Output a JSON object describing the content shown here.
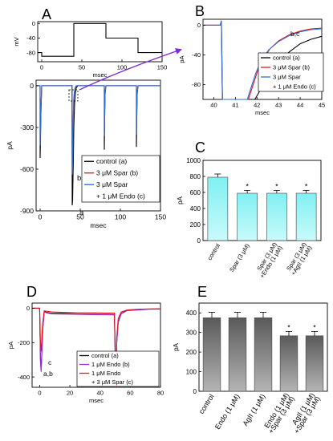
{
  "panels": {
    "a": "A",
    "b": "B",
    "c": "C",
    "d": "D",
    "e": "E"
  },
  "chart_data": [
    {
      "id": "A-inset",
      "type": "line",
      "ylabel": "mV",
      "xlabel": "msec",
      "xlim": [
        -5,
        150
      ],
      "ylim": [
        -105,
        5
      ],
      "xticks": [
        0,
        50,
        100,
        150
      ],
      "yticks": [
        0,
        -40,
        -80
      ],
      "series": [
        {
          "color": "#000000",
          "x": [
            -5,
            0,
            0,
            40,
            40,
            80,
            80,
            120,
            120,
            150
          ],
          "y": [
            -80,
            -80,
            -90,
            -90,
            0,
            0,
            -40,
            -40,
            -80,
            -80
          ]
        }
      ]
    },
    {
      "id": "A",
      "type": "line",
      "ylabel": "pA",
      "xlabel": "msec",
      "xlim": [
        -5,
        150
      ],
      "ylim": [
        -900,
        40
      ],
      "xticks": [
        0,
        50,
        100,
        150
      ],
      "yticks": [
        0,
        -300,
        -600,
        -900
      ],
      "annotations": [
        "b,c",
        "a"
      ],
      "legend": {
        "position": "bottom-right",
        "entries": [
          {
            "label": "control (a)",
            "color": "#000000"
          },
          {
            "label": "3 μM Spar (b)",
            "color": "#e8141b"
          },
          {
            "label": "3 μM Spar",
            "color": "#2a6fd6"
          },
          {
            "label": "+ 1 μM Endo (c)",
            "color": ""
          }
        ]
      },
      "series": [
        {
          "color": "#000000",
          "x": [
            -5,
            0,
            0,
            1,
            2,
            39.8,
            40,
            40.5,
            41,
            41.5,
            42,
            43,
            44,
            45,
            47,
            80,
            80,
            80.5,
            81,
            82,
            120,
            120,
            120.5,
            121,
            122,
            150
          ],
          "y": [
            0,
            0,
            -520,
            -200,
            0,
            0,
            -860,
            -820,
            -650,
            -500,
            -300,
            -120,
            -50,
            -15,
            0,
            0,
            -460,
            -200,
            -60,
            0,
            0,
            -440,
            -200,
            -60,
            0,
            0
          ]
        },
        {
          "color": "#e8141b",
          "x": [
            -5,
            0,
            0,
            1,
            2,
            39.8,
            40,
            40.5,
            41,
            41.5,
            42,
            43,
            44,
            45,
            47,
            80,
            80,
            80.5,
            81,
            82,
            120,
            120,
            120.5,
            121,
            122,
            150
          ],
          "y": [
            0,
            0,
            -430,
            -150,
            0,
            0,
            -640,
            -520,
            -330,
            -180,
            -90,
            -30,
            -10,
            0,
            0,
            0,
            -360,
            -150,
            -40,
            0,
            0,
            -350,
            -150,
            -40,
            0,
            0
          ]
        },
        {
          "color": "#2a6fd6",
          "x": [
            -5,
            0,
            0,
            1,
            2,
            39.8,
            40,
            40.5,
            41,
            41.5,
            42,
            43,
            44,
            45,
            47,
            80,
            80,
            80.5,
            81,
            82,
            120,
            120,
            120.5,
            121,
            122,
            150
          ],
          "y": [
            0,
            0,
            -430,
            -150,
            0,
            0,
            -640,
            -520,
            -320,
            -170,
            -85,
            -28,
            -9,
            0,
            0,
            0,
            -360,
            -150,
            -40,
            0,
            0,
            -350,
            -150,
            -40,
            0,
            0
          ]
        }
      ]
    },
    {
      "id": "B",
      "type": "line",
      "ylabel": "pA",
      "xlabel": "msec",
      "xlim": [
        39.5,
        45
      ],
      "ylim": [
        -100,
        8
      ],
      "xticks": [
        40,
        41,
        42,
        43,
        44,
        45
      ],
      "yticks": [
        0,
        -40,
        -80
      ],
      "annotations": [
        "b,c",
        "a"
      ],
      "legend": {
        "position": "bottom-right",
        "entries": [
          {
            "label": "control (a)",
            "color": "#000000"
          },
          {
            "label": "3 μM Spar (b)",
            "color": "#e8141b"
          },
          {
            "label": "3 μM Spar",
            "color": "#2a6fd6"
          },
          {
            "label": "+ 1 μM Endo (c)",
            "color": ""
          }
        ]
      },
      "series": [
        {
          "color": "#000000",
          "x": [
            39.5,
            40.3,
            40.35,
            40.4,
            40.45,
            41.9,
            42.2,
            42.5,
            42.8,
            43.0,
            43.5,
            44.0,
            44.5,
            45.0
          ],
          "y": [
            0,
            0,
            6,
            -100,
            -100,
            -100,
            -85,
            -70,
            -57,
            -50,
            -36,
            -25,
            -19,
            -15
          ]
        },
        {
          "color": "#e8141b",
          "x": [
            39.5,
            40.3,
            40.35,
            40.4,
            40.45,
            41.6,
            41.8,
            42.0,
            42.3,
            42.6,
            43.0,
            43.5,
            44.0,
            44.5,
            45.0
          ],
          "y": [
            0,
            0,
            6,
            -100,
            -100,
            -100,
            -82,
            -64,
            -45,
            -32,
            -21,
            -13,
            -8,
            -5,
            -4
          ]
        },
        {
          "color": "#2a6fd6",
          "x": [
            39.5,
            40.3,
            40.35,
            40.4,
            40.45,
            41.55,
            41.75,
            41.95,
            42.25,
            42.55,
            43.0,
            43.5,
            44.0,
            44.5,
            45.0
          ],
          "y": [
            0,
            0,
            6,
            -100,
            -100,
            -100,
            -82,
            -64,
            -45,
            -33,
            -22,
            -14,
            -9,
            -6,
            -5
          ]
        }
      ]
    },
    {
      "id": "C",
      "type": "bar",
      "ylabel": "pA",
      "ylim": [
        0,
        1000
      ],
      "yticks": [
        0,
        200,
        400,
        600,
        800,
        1000
      ],
      "categories": [
        "control",
        "Spar (3 μM)",
        "Spar (3 μM) +Endo (1 μM)",
        "Spar (3 μM) +AgII (1 μM)"
      ],
      "values": [
        790,
        590,
        590,
        590
      ],
      "errors": [
        40,
        35,
        35,
        35
      ],
      "significance": [
        "",
        "*",
        "*",
        "*"
      ],
      "bar_color": "#7fe8ec"
    },
    {
      "id": "D",
      "type": "line",
      "ylabel": "pA",
      "xlabel": "msec",
      "xlim": [
        -5,
        80
      ],
      "ylim": [
        -460,
        30
      ],
      "xticks": [
        0,
        20,
        40,
        60,
        80
      ],
      "yticks": [
        0,
        -200,
        -400
      ],
      "annotations": [
        "c",
        "a,b"
      ],
      "legend": {
        "position": "bottom-right",
        "entries": [
          {
            "label": "control (a)",
            "color": "#000000"
          },
          {
            "label": "1 μM Endo (b)",
            "color": "#9b30d9"
          },
          {
            "label": "1 μM Endo",
            "color": "#e8141b"
          },
          {
            "label": "+ 3 μM Spar (c)",
            "color": ""
          }
        ]
      },
      "series": [
        {
          "color": "#000000",
          "x": [
            -5,
            0,
            0.5,
            1,
            2,
            3,
            5,
            8,
            15,
            25,
            35,
            45,
            49.5,
            50,
            50.5,
            51,
            52,
            54,
            58,
            65,
            72,
            80
          ],
          "y": [
            0,
            0,
            -300,
            -360,
            -120,
            -20,
            -25,
            -30,
            -30,
            -33,
            -35,
            -36,
            -37,
            -250,
            -470,
            -200,
            -80,
            -30,
            -12,
            -8,
            -5,
            -4
          ]
        },
        {
          "color": "#9b30d9",
          "x": [
            -5,
            0,
            0.5,
            1,
            2,
            3,
            5,
            8,
            15,
            25,
            35,
            45,
            49.5,
            50,
            50.5,
            51,
            52,
            54,
            58,
            65,
            72,
            80
          ],
          "y": [
            0,
            0,
            -320,
            -370,
            -130,
            -22,
            -28,
            -33,
            -34,
            -35,
            -37,
            -38,
            -39,
            -260,
            -470,
            -210,
            -85,
            -32,
            -14,
            -10,
            -6,
            -5
          ]
        },
        {
          "color": "#e8141b",
          "x": [
            -5,
            0,
            0.5,
            1,
            2,
            3,
            5,
            8,
            15,
            25,
            35,
            45,
            49.5,
            50,
            50.5,
            51,
            52,
            54,
            58,
            65,
            72,
            80
          ],
          "y": [
            0,
            0,
            -200,
            -250,
            -90,
            -15,
            -18,
            -22,
            -24,
            -26,
            -27,
            -28,
            -28,
            -220,
            -470,
            -180,
            -60,
            -22,
            -10,
            -6,
            -4,
            -3
          ]
        }
      ]
    },
    {
      "id": "E",
      "type": "bar",
      "ylabel": "pA",
      "ylim": [
        0,
        450
      ],
      "yticks": [
        0,
        100,
        200,
        300,
        400
      ],
      "categories": [
        "control",
        "Endo (1 μM)",
        "AgII (1 μM)",
        "Endo (1 μM) +Spar (3 μM)",
        "AgII (1 μM) +Spar (3 μM)"
      ],
      "values": [
        375,
        375,
        375,
        283,
        283
      ],
      "errors": [
        28,
        28,
        28,
        22,
        22
      ],
      "significance": [
        "",
        "",
        "",
        "*",
        "*"
      ],
      "bar_color": "#707070"
    }
  ]
}
